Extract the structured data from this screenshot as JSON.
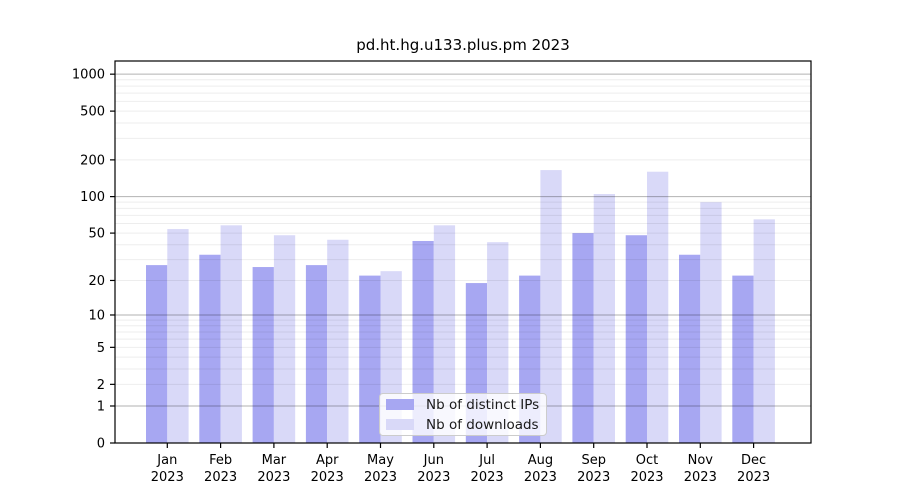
{
  "chart_data": {
    "type": "bar",
    "title": "pd.ht.hg.u133.plus.pm 2023",
    "scale": "log1p",
    "year": "2023",
    "categories": [
      "Jan",
      "Feb",
      "Mar",
      "Apr",
      "May",
      "Jun",
      "Jul",
      "Aug",
      "Sep",
      "Oct",
      "Nov",
      "Dec"
    ],
    "series": [
      {
        "name": "Nb of distinct IPs",
        "color": "#a7a7f2",
        "values": [
          27,
          33,
          26,
          27,
          22,
          43,
          19,
          22,
          50,
          48,
          33,
          22
        ]
      },
      {
        "name": "Nb of downloads",
        "color": "#d9d9f8",
        "values": [
          54,
          58,
          48,
          44,
          24,
          58,
          42,
          165,
          105,
          160,
          90,
          65
        ]
      }
    ],
    "yticks": [
      0,
      1,
      2,
      5,
      10,
      20,
      50,
      100,
      200,
      500,
      1000
    ],
    "ylim": [
      0,
      1280
    ],
    "grid": "on",
    "grid_major_at": [
      1,
      10,
      100,
      1000
    ],
    "legend_position": "bottom-center",
    "xlabel": "",
    "ylabel": ""
  },
  "colors": {
    "axis": "#000000",
    "grid_major": "rgba(0,0,0,0.30)",
    "grid_minor": "rgba(0,0,0,0.07)",
    "background": "#ffffff"
  }
}
